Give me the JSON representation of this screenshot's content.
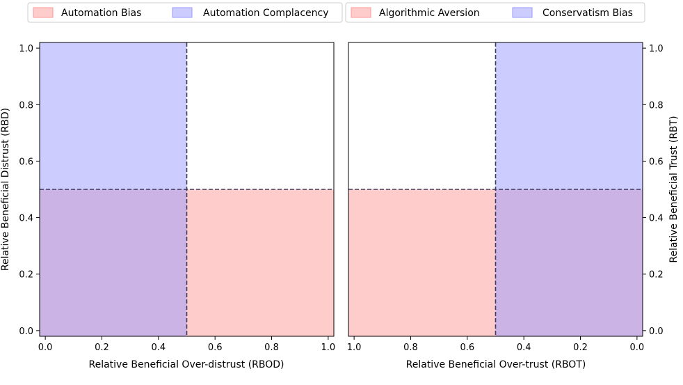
{
  "colors": {
    "automation_bias": "#ff9999",
    "automation_complacency": "#9999ff",
    "algorithmic_aversion": "#ff9999",
    "conservatism_bias": "#9999ff",
    "divider": "#3b3b5c"
  },
  "chart_data": [
    {
      "type": "area",
      "xlabel": "Relative Beneficial Over-distrust (RBOD)",
      "ylabel": "Relative Beneficial Distrust (RBD)",
      "xlim": [
        0.0,
        1.0
      ],
      "ylim": [
        0.0,
        1.0
      ],
      "x_ticks": [
        "0.0",
        "0.2",
        "0.4",
        "0.6",
        "0.8",
        "1.0"
      ],
      "y_ticks": [
        "0.0",
        "0.2",
        "0.4",
        "0.6",
        "0.8",
        "1.0"
      ],
      "y_axis_side": "left",
      "x_reversed": false,
      "grid": false,
      "legend_position": "top",
      "legend": [
        "Automation Bias",
        "Automation Complacency"
      ],
      "regions": [
        {
          "name": "Automation Bias",
          "color_key": "automation_bias",
          "x": [
            0.0,
            1.0
          ],
          "y": [
            0.0,
            0.5
          ]
        },
        {
          "name": "Automation Complacency",
          "color_key": "automation_complacency",
          "x": [
            0.0,
            0.5
          ],
          "y": [
            0.0,
            1.0
          ]
        }
      ],
      "divider_lines": {
        "x": 0.5,
        "y": 0.5
      }
    },
    {
      "type": "area",
      "xlabel": "Relative Beneficial Over-trust (RBOT)",
      "ylabel": "Relative Beneficial Trust (RBT)",
      "xlim": [
        1.0,
        0.0
      ],
      "ylim": [
        0.0,
        1.0
      ],
      "x_ticks": [
        "1.0",
        "0.8",
        "0.6",
        "0.4",
        "0.2",
        "0.0"
      ],
      "y_ticks": [
        "0.0",
        "0.2",
        "0.4",
        "0.6",
        "0.8",
        "1.0"
      ],
      "y_axis_side": "right",
      "x_reversed": true,
      "grid": false,
      "legend_position": "top",
      "legend": [
        "Algorithmic Aversion",
        "Conservatism Bias"
      ],
      "regions": [
        {
          "name": "Algorithmic Aversion",
          "color_key": "algorithmic_aversion",
          "x": [
            0.0,
            1.0
          ],
          "y": [
            0.0,
            0.5
          ]
        },
        {
          "name": "Conservatism Bias",
          "color_key": "conservatism_bias",
          "x": [
            0.0,
            0.5
          ],
          "y": [
            0.0,
            1.0
          ]
        }
      ],
      "divider_lines": {
        "x": 0.5,
        "y": 0.5
      }
    }
  ]
}
